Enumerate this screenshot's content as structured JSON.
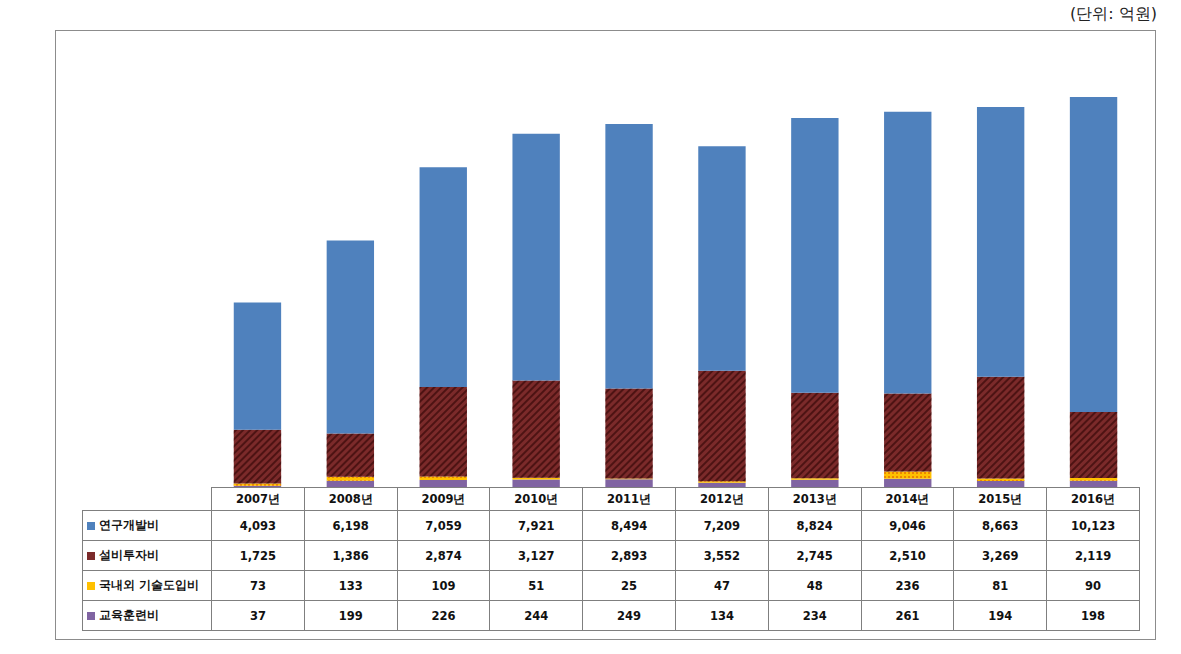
{
  "chart_data": {
    "type": "bar",
    "stacked": true,
    "ylabel": "(단위: 억원)",
    "categories": [
      "2007년",
      "2008년",
      "2009년",
      "2010년",
      "2011년",
      "2012년",
      "2013년",
      "2014년",
      "2015년",
      "2016년"
    ],
    "series": [
      {
        "name": "연구개발비",
        "color": "#4f81bd",
        "values": [
          4093,
          6198,
          7059,
          7921,
          8494,
          7209,
          8824,
          9046,
          8663,
          10123
        ]
      },
      {
        "name": "설비투자비",
        "color": "#7b2a2a",
        "values": [
          1725,
          1386,
          2874,
          3127,
          2893,
          3552,
          2745,
          2510,
          3269,
          2119
        ]
      },
      {
        "name": "국내외 기술도입비",
        "color": "#ffc000",
        "values": [
          73,
          133,
          109,
          51,
          25,
          47,
          48,
          236,
          81,
          90
        ]
      },
      {
        "name": "교육훈련비",
        "color": "#8064a2",
        "values": [
          37,
          199,
          226,
          244,
          249,
          134,
          234,
          261,
          194,
          198
        ]
      }
    ],
    "ylim": [
      0,
      15000
    ],
    "yticks": [
      0,
      5000,
      10000,
      15000
    ],
    "grid": false,
    "tick_labels": false,
    "legend": "left"
  }
}
